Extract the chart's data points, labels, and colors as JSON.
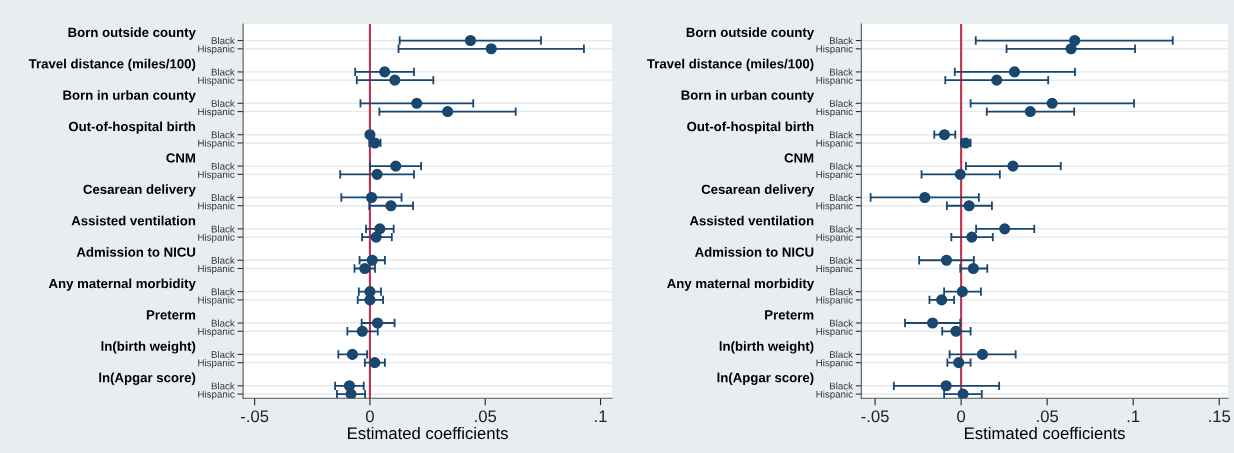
{
  "chart_data": [
    {
      "type": "scatter",
      "orientation": "horizontal",
      "xlabel": "Estimated coefficients",
      "annotations": [
        "Born outside county",
        "Travel distance (miles/100)",
        "Born in urban county",
        "Out-of-hospital birth",
        "CNM",
        "Cesarean delivery",
        "Assisted ventilation",
        "Admission to NICU",
        "Any maternal morbidity",
        "Preterm",
        "ln(birth weight)",
        "ln(Apgar score)"
      ],
      "categories": [
        "Black",
        "Hispanic",
        "Black",
        "Hispanic",
        "Black",
        "Hispanic",
        "Black",
        "Hispanic",
        "Black",
        "Hispanic",
        "Black",
        "Hispanic",
        "Black",
        "Hispanic",
        "Black",
        "Hispanic",
        "Black",
        "Hispanic",
        "Black",
        "Hispanic",
        "Black",
        "Hispanic",
        "Black",
        "Hispanic"
      ],
      "series": [
        {
          "color": "#1a476f",
          "values": [
            0.0436,
            0.0526,
            0.0064,
            0.0108,
            0.0203,
            0.0337,
            0.0,
            0.0021,
            0.0112,
            0.0031,
            0.0007,
            0.0091,
            0.0043,
            0.0027,
            0.001,
            -0.0022,
            0.0,
            0.0,
            0.0033,
            -0.0033,
            -0.0076,
            0.0021,
            -0.0089,
            -0.0082
          ],
          "errors": [
            [
              0.0129,
              0.0742
            ],
            [
              0.0124,
              0.0928
            ],
            [
              -0.0064,
              0.0191
            ],
            [
              -0.0057,
              0.0275
            ],
            [
              -0.0041,
              0.0448
            ],
            [
              0.0041,
              0.0632
            ],
            [
              -0.001,
              0.0012
            ],
            [
              -0.0003,
              0.0046
            ],
            [
              0.0,
              0.0222
            ],
            [
              -0.0129,
              0.0191
            ],
            [
              -0.0124,
              0.0137
            ],
            [
              -0.0003,
              0.0187
            ],
            [
              -0.0017,
              0.0103
            ],
            [
              -0.0034,
              0.0095
            ],
            [
              -0.0045,
              0.0065
            ],
            [
              -0.0067,
              0.0022
            ],
            [
              -0.0048,
              0.0048
            ],
            [
              -0.0053,
              0.0057
            ],
            [
              -0.0036,
              0.0107
            ],
            [
              -0.0098,
              0.0034
            ],
            [
              -0.0137,
              -0.0012
            ],
            [
              -0.0022,
              0.0065
            ],
            [
              -0.0151,
              -0.0027
            ],
            [
              -0.0143,
              -0.0021
            ]
          ]
        }
      ],
      "xlim": [
        -0.055,
        0.105
      ],
      "xticks": [
        {
          "value": -0.05,
          "label": "-.05"
        },
        {
          "value": 0,
          "label": "0"
        },
        {
          "value": 0.05,
          "label": ".05"
        },
        {
          "value": 0.1,
          "label": ".1"
        }
      ],
      "ref_lines": [
        {
          "axis": "x",
          "value": 0,
          "color": "#c0304e"
        }
      ],
      "grid": "y",
      "marker": "circle"
    },
    {
      "type": "scatter",
      "orientation": "horizontal",
      "xlabel": "Estimated coefficients",
      "annotations": [
        "Born outside county",
        "Travel distance (miles/100)",
        "Born in urban county",
        "Out-of-hospital birth",
        "CNM",
        "Cesarean delivery",
        "Assisted ventilation",
        "Admission to NICU",
        "Any maternal morbidity",
        "Preterm",
        "ln(birth weight)",
        "ln(Apgar score)"
      ],
      "categories": [
        "Black",
        "Hispanic",
        "Black",
        "Hispanic",
        "Black",
        "Hispanic",
        "Black",
        "Hispanic",
        "Black",
        "Hispanic",
        "Black",
        "Hispanic",
        "Black",
        "Hispanic",
        "Black",
        "Hispanic",
        "Black",
        "Hispanic",
        "Black",
        "Hispanic",
        "Black",
        "Hispanic",
        "Black",
        "Hispanic"
      ],
      "series": [
        {
          "color": "#1a476f",
          "values": [
            0.066,
            0.0639,
            0.031,
            0.0207,
            0.0529,
            0.0402,
            -0.0097,
            0.0025,
            0.0301,
            -0.0005,
            -0.0211,
            0.0046,
            0.0253,
            0.0062,
            -0.0085,
            0.0071,
            0.0007,
            -0.0113,
            -0.0166,
            -0.003,
            0.0124,
            -0.0014,
            -0.0087,
            0.0011
          ],
          "errors": [
            [
              0.0085,
              0.123
            ],
            [
              0.0264,
              0.1011
            ],
            [
              -0.0037,
              0.0662
            ],
            [
              -0.0092,
              0.0506
            ],
            [
              0.0055,
              0.1005
            ],
            [
              0.0149,
              0.0657
            ],
            [
              -0.0156,
              -0.0034
            ],
            [
              0.0,
              0.0055
            ],
            [
              0.0028,
              0.0579
            ],
            [
              -0.023,
              0.0225
            ],
            [
              -0.0526,
              0.0103
            ],
            [
              -0.0083,
              0.0179
            ],
            [
              0.0087,
              0.0425
            ],
            [
              -0.0057,
              0.0184
            ],
            [
              -0.0244,
              0.0074
            ],
            [
              -0.0005,
              0.0152
            ],
            [
              -0.0099,
              0.0115
            ],
            [
              -0.0184,
              -0.0041
            ],
            [
              -0.0326,
              -0.0005
            ],
            [
              -0.011,
              0.0055
            ],
            [
              -0.0067,
              0.0317
            ],
            [
              -0.008,
              0.0055
            ],
            [
              -0.0391,
              0.0221
            ],
            [
              -0.0099,
              0.012
            ]
          ]
        }
      ],
      "xlim": [
        -0.058,
        0.155
      ],
      "xticks": [
        {
          "value": -0.05,
          "label": "-.05"
        },
        {
          "value": 0,
          "label": "0"
        },
        {
          "value": 0.05,
          "label": ".05"
        },
        {
          "value": 0.1,
          "label": ".1"
        },
        {
          "value": 0.15,
          "label": ".15"
        }
      ],
      "ref_lines": [
        {
          "axis": "x",
          "value": 0,
          "color": "#c0304e"
        }
      ],
      "grid": "y",
      "marker": "circle"
    }
  ]
}
